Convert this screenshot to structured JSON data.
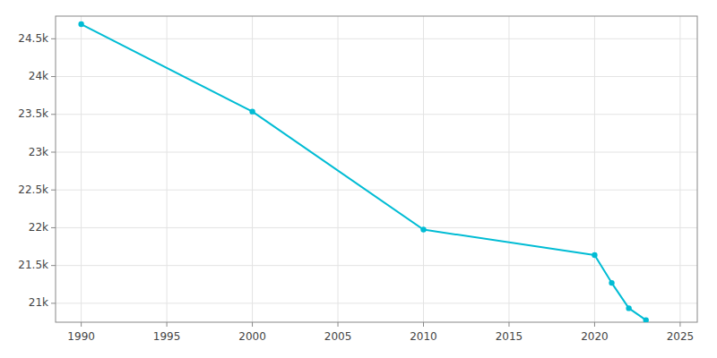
{
  "chart_data": {
    "type": "line",
    "x": [
      1990,
      2000,
      2010,
      2020,
      2021,
      2022,
      2023
    ],
    "values": [
      24693,
      23537,
      21975,
      21638,
      21270,
      20935,
      20778
    ],
    "color": "#00bcd4",
    "marker": "circle",
    "xlim": [
      1988.5,
      2026
    ],
    "ylim": [
      20750,
      24800
    ],
    "xticks": [
      1990,
      1995,
      2000,
      2005,
      2010,
      2015,
      2020,
      2025
    ],
    "yticks": [
      {
        "value": 21000,
        "label": "21k"
      },
      {
        "value": 21500,
        "label": "21.5k"
      },
      {
        "value": 22000,
        "label": "22k"
      },
      {
        "value": 22500,
        "label": "22.5k"
      },
      {
        "value": 23000,
        "label": "23k"
      },
      {
        "value": 23500,
        "label": "23.5k"
      },
      {
        "value": 24000,
        "label": "24k"
      },
      {
        "value": 24500,
        "label": "24.5k"
      }
    ],
    "grid": true
  }
}
